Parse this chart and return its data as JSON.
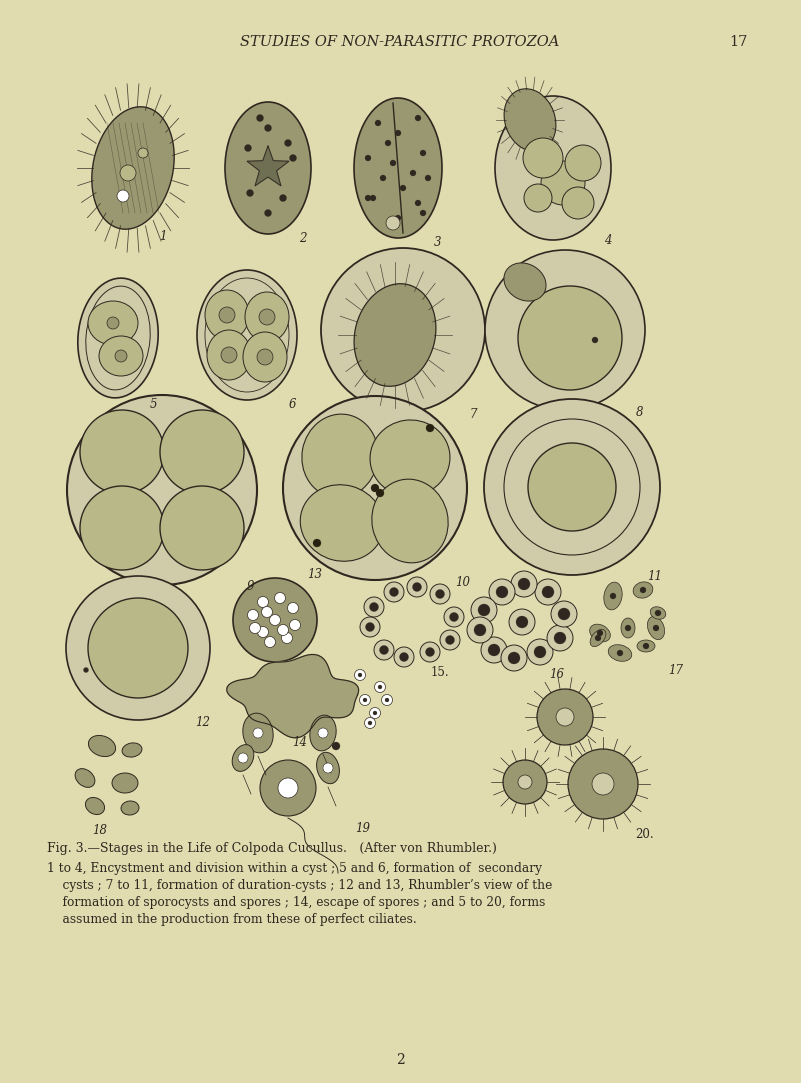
{
  "bg": "#e0dcb0",
  "ink": "#302820",
  "header": "STUDIES OF NON-PARASITIC PROTOZOA",
  "page_num": "17",
  "fig_caption": "Fig. 3.—Stages in the Life of Colpoda Cucullus. (After von Rhumbler.)",
  "body_text": "1 to 4, Encystment and division within a cyst ; 5 and 6, formation of  secondary\n    cysts ; 7 to 11, formation of duration-cysts ; 12 and 13, Rhumbler’s view of the\n    formation of sporocysts and spores ; 14, escape of spores ; and 5 to 20, forms\n    assumed in the production from these of perfect ciliates.",
  "page_num_bottom": "2",
  "header_fs": 10.5,
  "caption_fs": 9.0,
  "body_fs": 8.8
}
